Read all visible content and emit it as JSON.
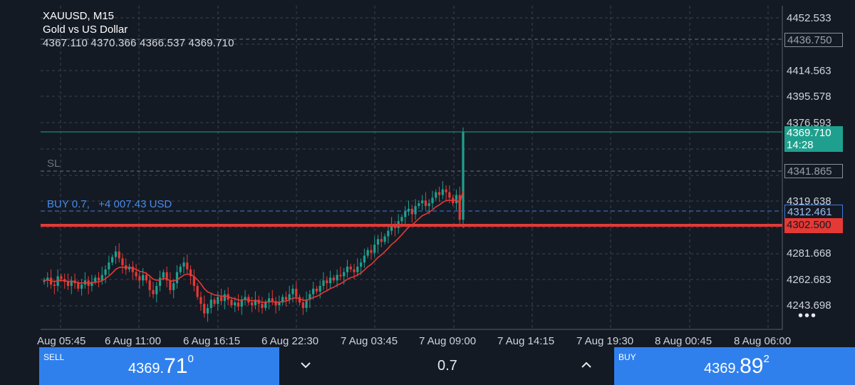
{
  "header": {
    "symbol_tf": "XAUUSD, M15",
    "description": "Gold vs US Dollar",
    "ohlc": "4367.110 4370.366 4366.537 4369.710"
  },
  "price_axis": {
    "labels": [
      "4452.533",
      "4414.563",
      "4395.578",
      "4376.593",
      "4319.638",
      "4281.668",
      "4262.683",
      "4243.698"
    ]
  },
  "price_tags": {
    "tp_level": "4436.750",
    "current_price": "4369.710",
    "countdown": "14:28",
    "sl_level": "4341.865",
    "entry_level": "4312.461",
    "red_level": "4302.500"
  },
  "chart_labels": {
    "sl": "SL",
    "position": "BUY 0.7,   +4 007.43 USD"
  },
  "time_axis": [
    "Aug 05:45",
    "6 Aug 11:00",
    "6 Aug 16:15",
    "6 Aug 22:30",
    "7 Aug 03:45",
    "7 Aug 09:00",
    "7 Aug 14:15",
    "7 Aug 19:30",
    "8 Aug 00:45",
    "8 Aug 06:00"
  ],
  "trade_bar": {
    "sell_label": "SELL",
    "sell_price_main": "4369.",
    "sell_price_big": "71",
    "sell_price_small": "0",
    "lot_value": "0.7",
    "buy_label": "BUY",
    "buy_price_main": "4369.",
    "buy_price_big": "89",
    "buy_price_small": "2"
  },
  "colors": {
    "background": "#141a24",
    "bull": "#1fa08e",
    "bear": "#e53935",
    "ma": "#e53935",
    "accent_blue": "#2f80ed"
  },
  "chart_data": {
    "type": "candlestick",
    "y_range": [
      4235,
      4458
    ],
    "moving_average": true,
    "series_close": [
      4262,
      4264,
      4259,
      4258,
      4265,
      4263,
      4261,
      4258,
      4262,
      4260,
      4256,
      4259,
      4262,
      4258,
      4261,
      4264,
      4262,
      4266,
      4270,
      4275,
      4279,
      4283,
      4278,
      4273,
      4270,
      4272,
      4268,
      4265,
      4262,
      4266,
      4262,
      4255,
      4252,
      4258,
      4264,
      4268,
      4262,
      4255,
      4260,
      4268,
      4272,
      4275,
      4270,
      4265,
      4258,
      4250,
      4245,
      4238,
      4242,
      4248,
      4245,
      4250,
      4247,
      4252,
      4248,
      4244,
      4246,
      4243,
      4248,
      4250,
      4246,
      4244,
      4248,
      4245,
      4242,
      4246,
      4249,
      4247,
      4244,
      4246,
      4250,
      4248,
      4252,
      4256,
      4250,
      4246,
      4242,
      4248,
      4252,
      4256,
      4254,
      4258,
      4262,
      4260,
      4264,
      4262,
      4266,
      4265,
      4268,
      4272,
      4270,
      4268,
      4272,
      4275,
      4280,
      4284,
      4282,
      4288,
      4292,
      4290,
      4294,
      4298,
      4302,
      4300,
      4305,
      4308,
      4312,
      4314,
      4310,
      4316,
      4318,
      4320,
      4316,
      4318,
      4322,
      4326,
      4324,
      4328,
      4326,
      4322,
      4318,
      4324,
      4306,
      4370
    ]
  }
}
